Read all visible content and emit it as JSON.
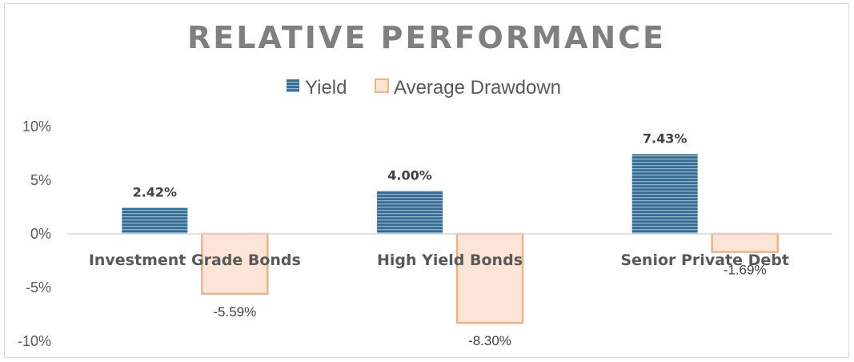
{
  "chart_data": {
    "type": "bar",
    "title": "RELATIVE PERFORMANCE",
    "categories": [
      "Investment Grade Bonds",
      "High Yield Bonds",
      "Senior Private Debt"
    ],
    "series": [
      {
        "name": "Yield",
        "values": [
          2.42,
          4.0,
          7.43
        ],
        "labels": [
          "2.42%",
          "4.00%",
          "7.43%"
        ],
        "color": "#2e6f95"
      },
      {
        "name": "Average Drawdown",
        "values": [
          -5.59,
          -8.3,
          -1.69
        ],
        "labels": [
          "-5.59%",
          "-8.30%",
          "-1.69%"
        ],
        "color": "#f4b183"
      }
    ],
    "ylim": [
      -10,
      10
    ],
    "yticks": [
      10,
      5,
      0,
      -5,
      -10
    ],
    "ytick_labels": [
      "10%",
      "5%",
      "0%",
      "-5%",
      "-10%"
    ],
    "xlabel": "",
    "ylabel": "",
    "grid": false,
    "legend_position": "top"
  }
}
